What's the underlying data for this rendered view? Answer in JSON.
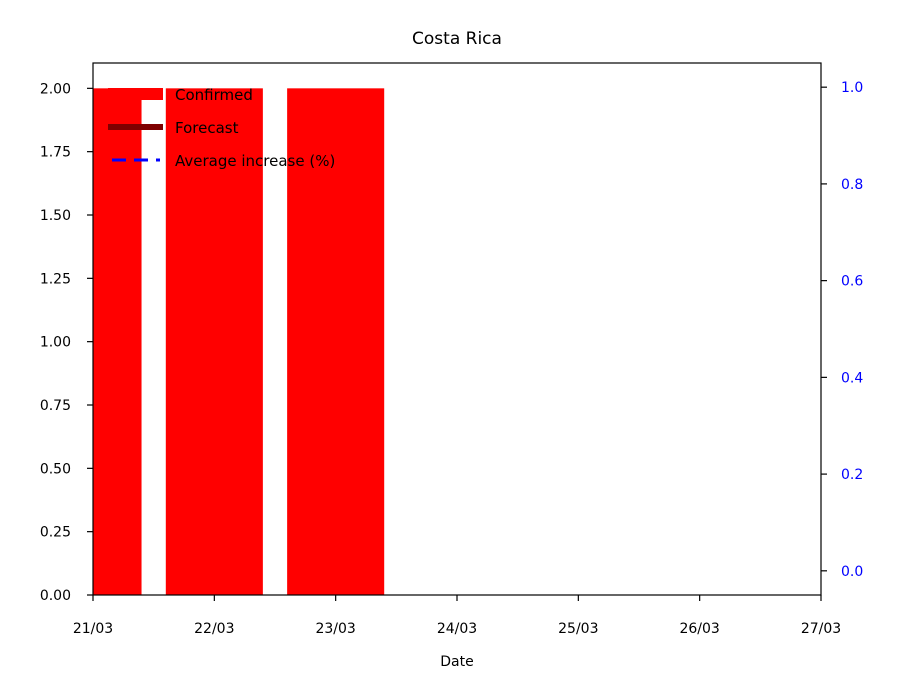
{
  "chart_data": {
    "type": "bar",
    "title": "Costa Rica",
    "xlabel": "Date",
    "ylabel": "",
    "ylabel_right": "",
    "x_ticks": [
      "21/03",
      "22/03",
      "23/03",
      "24/03",
      "25/03",
      "26/03",
      "27/03"
    ],
    "x_range": [
      "21/03",
      "27/03"
    ],
    "y_left": {
      "range": [
        0,
        2.1
      ],
      "ticks": [
        "0.00",
        "0.25",
        "0.50",
        "0.75",
        "1.00",
        "1.25",
        "1.50",
        "1.75",
        "2.00"
      ]
    },
    "y_right": {
      "range": [
        -0.05,
        1.05
      ],
      "ticks": [
        "0.0",
        "0.2",
        "0.4",
        "0.6",
        "0.8",
        "1.0"
      ],
      "color": "#0000ff"
    },
    "series": [
      {
        "name": "Confirmed",
        "kind": "bar",
        "color": "#ff0000",
        "points": [
          {
            "date": "21/03",
            "value": 2
          },
          {
            "date": "22/03",
            "value": 2
          },
          {
            "date": "23/03",
            "value": 2
          }
        ]
      },
      {
        "name": "Forecast",
        "kind": "line",
        "color": "#7f0000",
        "points": []
      },
      {
        "name": "Average increase (%)",
        "kind": "dashed-line",
        "color": "#0000ff",
        "axis": "right",
        "points": []
      }
    ],
    "legend": {
      "placement": "top-left",
      "entries": [
        "Confirmed",
        "Forecast",
        "Average increase (%)"
      ]
    },
    "grid": false
  }
}
